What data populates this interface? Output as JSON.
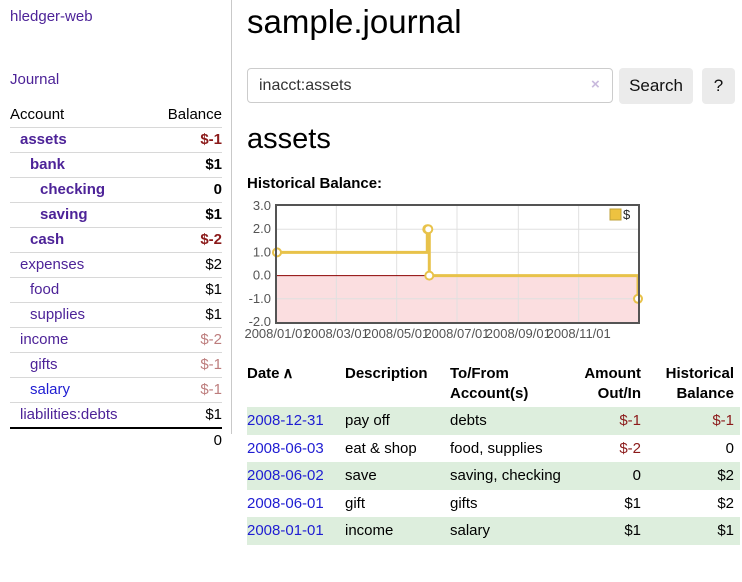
{
  "app": {
    "title": "hledger-web"
  },
  "sidebar": {
    "journal_link": "Journal",
    "accounts_table": {
      "headers": {
        "account": "Account",
        "balance": "Balance"
      },
      "rows": [
        {
          "name": "assets",
          "indent": 1,
          "bold": true,
          "link_color": "purple",
          "balance": "$-1",
          "balance_style": "neg-strong"
        },
        {
          "name": "bank",
          "indent": 2,
          "bold": true,
          "link_color": "purple",
          "balance": "$1",
          "balance_style": "pos"
        },
        {
          "name": "checking",
          "indent": 3,
          "bold": true,
          "link_color": "purple",
          "balance": "0",
          "balance_style": "pos"
        },
        {
          "name": "saving",
          "indent": 3,
          "bold": true,
          "link_color": "purple",
          "balance": "$1",
          "balance_style": "pos"
        },
        {
          "name": "cash",
          "indent": 2,
          "bold": true,
          "link_color": "purple",
          "balance": "$-2",
          "balance_style": "neg-strong"
        },
        {
          "name": "expenses",
          "indent": 1,
          "bold": false,
          "link_color": "purple",
          "balance": "$2",
          "balance_style": "pos"
        },
        {
          "name": "food",
          "indent": 2,
          "bold": false,
          "link_color": "purple",
          "balance": "$1",
          "balance_style": "pos"
        },
        {
          "name": "supplies",
          "indent": 2,
          "bold": false,
          "link_color": "purple",
          "balance": "$1",
          "balance_style": "pos"
        },
        {
          "name": "income",
          "indent": 1,
          "bold": false,
          "link_color": "purple",
          "balance": "$-2",
          "balance_style": "neg-soft"
        },
        {
          "name": "gifts",
          "indent": 2,
          "bold": false,
          "link_color": "purple",
          "balance": "$-1",
          "balance_style": "neg-soft"
        },
        {
          "name": "salary",
          "indent": 2,
          "bold": false,
          "link_color": "blue",
          "balance": "$-1",
          "balance_style": "neg-soft"
        },
        {
          "name": "liabilities:debts",
          "indent": 1,
          "bold": false,
          "link_color": "purple",
          "balance": "$1",
          "balance_style": "pos"
        }
      ],
      "total": "0"
    }
  },
  "header": {
    "title": "sample.journal"
  },
  "search": {
    "value": "inacct:assets",
    "clear_icon": "×",
    "button_label": "Search",
    "help_label": "?"
  },
  "account_page": {
    "heading": "assets",
    "chart_label": "Historical Balance:"
  },
  "chart_data": {
    "type": "line",
    "title": "Historical Balance:",
    "x_type": "date",
    "xrange": [
      "2008-01-01",
      "2008-12-31"
    ],
    "ylim": [
      -2,
      3
    ],
    "yticks": [
      {
        "v": 3,
        "label": "3.0"
      },
      {
        "v": 2,
        "label": "2.0"
      },
      {
        "v": 1,
        "label": "1.0"
      },
      {
        "v": 0,
        "label": "0.0"
      },
      {
        "v": -1,
        "label": "-1.0"
      },
      {
        "v": -2,
        "label": "-2.0"
      }
    ],
    "xticks": [
      {
        "d": "2008-01-01",
        "label": "2008/01/01"
      },
      {
        "d": "2008-03-01",
        "label": "2008/03/01"
      },
      {
        "d": "2008-05-01",
        "label": "2008/05/01"
      },
      {
        "d": "2008-07-01",
        "label": "2008/07/01"
      },
      {
        "d": "2008-09-01",
        "label": "2008/09/01"
      },
      {
        "d": "2008-11-01",
        "label": "2008/11/01"
      }
    ],
    "series": [
      {
        "name": "$",
        "style": "step-line",
        "color": "#e8c24a",
        "marker_fill": "#ffffff",
        "points": [
          [
            "2008-01-01",
            1
          ],
          [
            "2008-06-01",
            2
          ],
          [
            "2008-06-02",
            2
          ],
          [
            "2008-06-03",
            0
          ],
          [
            "2008-12-31",
            -1
          ]
        ]
      }
    ],
    "legend": {
      "position": "top-right",
      "entries": [
        {
          "label": "$",
          "color": "#edc240"
        }
      ]
    },
    "grid": true,
    "negative_region_fill": "#fbdee0",
    "zero_line_color": "#8b0000",
    "grid_color": "#e0e0e0",
    "border_color": "#545454",
    "tick_label_color": "#545454"
  },
  "register_table": {
    "headers": {
      "date": "Date",
      "sort_icon": "∧",
      "description": "Description",
      "accounts": "To/From Account(s)",
      "amount": "Amount Out/In",
      "balance": "Historical Balance"
    },
    "rows": [
      {
        "date": "2008-12-31",
        "description": "pay off",
        "accounts": "debts",
        "amount": "$-1",
        "amount_neg": true,
        "balance": "$-1",
        "balance_neg": true,
        "shaded": true
      },
      {
        "date": "2008-06-03",
        "description": "eat & shop",
        "accounts": "food, supplies",
        "amount": "$-2",
        "amount_neg": true,
        "balance": "0",
        "balance_neg": false,
        "shaded": false
      },
      {
        "date": "2008-06-02",
        "description": "save",
        "accounts": "saving, checking",
        "amount": "0",
        "amount_neg": false,
        "balance": "$2",
        "balance_neg": false,
        "shaded": true
      },
      {
        "date": "2008-06-01",
        "description": "gift",
        "accounts": "gifts",
        "amount": "$1",
        "amount_neg": false,
        "balance": "$2",
        "balance_neg": false,
        "shaded": false
      },
      {
        "date": "2008-01-01",
        "description": "income",
        "accounts": "salary",
        "amount": "$1",
        "amount_neg": false,
        "balance": "$1",
        "balance_neg": false,
        "shaded": true
      }
    ]
  },
  "colors": {
    "link_purple": "#4d2398",
    "link_blue": "#1f1dd2",
    "negative_strong": "#8b1a1a",
    "negative_soft": "#bd7d7d",
    "row_green": "#ddeedd",
    "series_yellow": "#e8c24a",
    "chart_negative_fill": "#fbdee0",
    "chart_zero_line": "#8b0000",
    "button_bg": "#ebebeb",
    "clear_icon": "#c9badd"
  }
}
